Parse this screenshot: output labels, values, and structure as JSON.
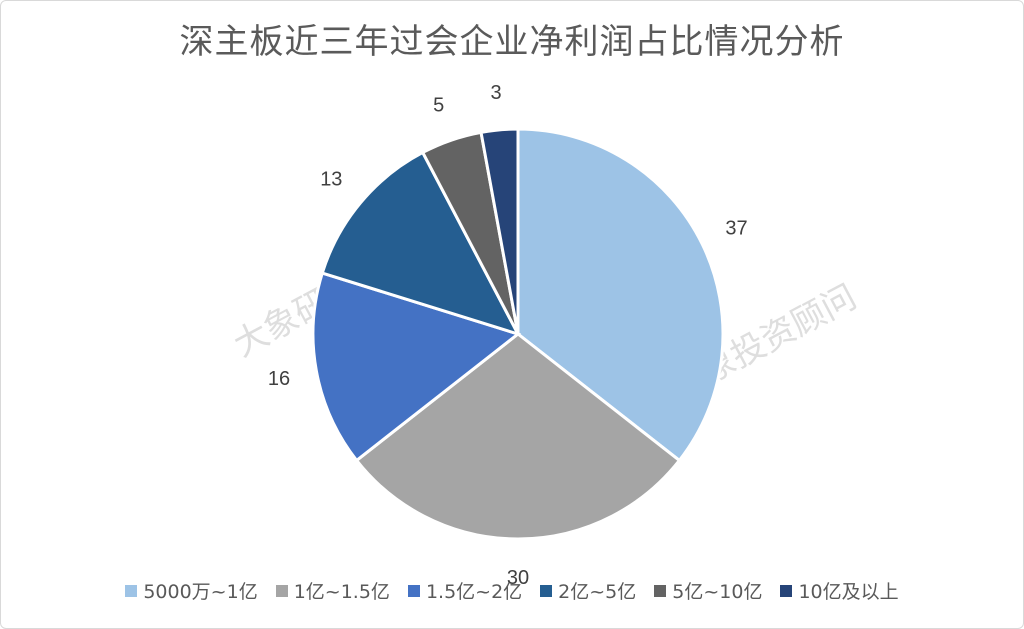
{
  "title": "深主板近三年过会企业净利润占比情况分析",
  "watermarks": [
    "大象研究院",
    "大象投资顾问"
  ],
  "chart_data": {
    "type": "pie",
    "title": "深主板近三年过会企业净利润占比情况分析",
    "categories": [
      "5000万~1亿",
      "1亿~1.5亿",
      "1.5亿~2亿",
      "2亿~5亿",
      "5亿~10亿",
      "10亿及以上"
    ],
    "values": [
      37,
      30,
      16,
      13,
      5,
      3
    ],
    "colors": [
      "#9dc3e6",
      "#a5a5a5",
      "#4472c4",
      "#255e91",
      "#636363",
      "#264478"
    ],
    "start": "12 o'clock, clockwise",
    "legend": "bottom"
  }
}
